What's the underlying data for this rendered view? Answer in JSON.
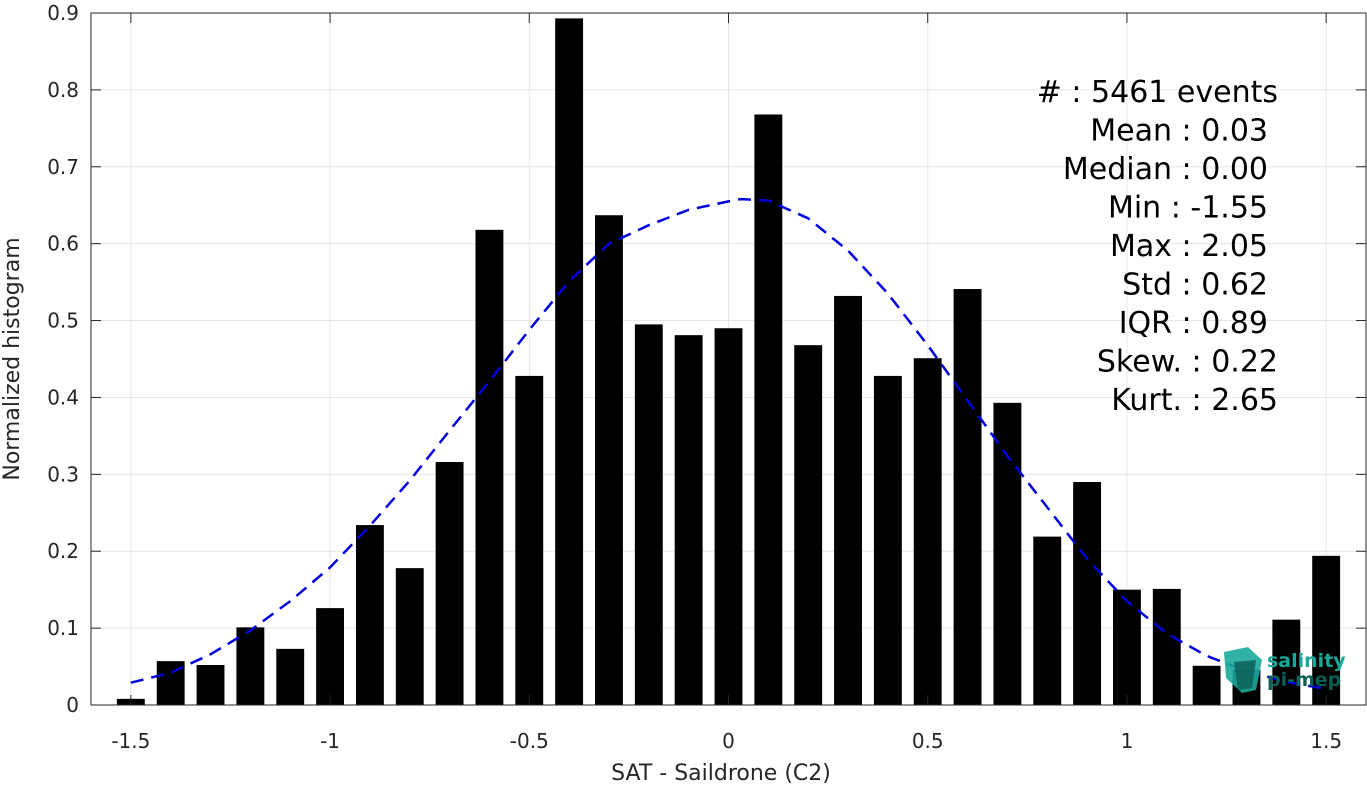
{
  "chart_data": {
    "type": "bar",
    "title": "",
    "xlabel": "SAT - Saildrone (C2)",
    "ylabel": "Normalized histogram",
    "xlim": [
      -1.6,
      1.6
    ],
    "ylim": [
      0,
      0.9
    ],
    "xticks": [
      -1.5,
      -1,
      -0.5,
      0,
      0.5,
      1,
      1.5
    ],
    "xtick_labels": [
      "-1.5",
      "-1",
      "-0.5",
      "0",
      "0.5",
      "1",
      "1.5"
    ],
    "yticks": [
      0,
      0.1,
      0.2,
      0.3,
      0.4,
      0.5,
      0.6,
      0.7,
      0.8,
      0.9
    ],
    "ytick_labels": [
      "0",
      "0.1",
      "0.2",
      "0.3",
      "0.4",
      "0.5",
      "0.6",
      "0.7",
      "0.8",
      "0.9"
    ],
    "grid": true,
    "bar_width": 0.07,
    "bar_color": "#000000",
    "bars": {
      "x": [
        -1.5,
        -1.4,
        -1.3,
        -1.2,
        -1.1,
        -1.0,
        -0.9,
        -0.8,
        -0.7,
        -0.6,
        -0.5,
        -0.4,
        -0.3,
        -0.2,
        -0.1,
        0.0,
        0.1,
        0.2,
        0.3,
        0.4,
        0.5,
        0.6,
        0.7,
        0.8,
        0.9,
        1.0,
        1.1,
        1.2,
        1.3,
        1.4,
        1.5
      ],
      "values": [
        0.008,
        0.057,
        0.052,
        0.101,
        0.073,
        0.126,
        0.234,
        0.178,
        0.316,
        0.618,
        0.428,
        0.893,
        0.637,
        0.495,
        0.481,
        0.49,
        0.768,
        0.468,
        0.532,
        0.428,
        0.451,
        0.541,
        0.393,
        0.219,
        0.29,
        0.15,
        0.151,
        0.051,
        0.046,
        0.111,
        0.194
      ]
    },
    "fit": {
      "style": "dashed",
      "color": "#0000dd",
      "x": [
        -1.5,
        -1.4,
        -1.3,
        -1.2,
        -1.1,
        -1.0,
        -0.9,
        -0.8,
        -0.7,
        -0.6,
        -0.5,
        -0.4,
        -0.3,
        -0.2,
        -0.1,
        0.0,
        0.03,
        0.1,
        0.2,
        0.3,
        0.4,
        0.5,
        0.6,
        0.7,
        0.8,
        0.9,
        1.0,
        1.1,
        1.2,
        1.3,
        1.4,
        1.5
      ],
      "values": [
        0.029,
        0.042,
        0.066,
        0.097,
        0.135,
        0.179,
        0.233,
        0.292,
        0.357,
        0.421,
        0.488,
        0.551,
        0.6,
        0.624,
        0.644,
        0.655,
        0.658,
        0.656,
        0.633,
        0.591,
        0.535,
        0.468,
        0.396,
        0.324,
        0.257,
        0.19,
        0.135,
        0.093,
        0.064,
        0.044,
        0.03,
        0.021
      ]
    },
    "stats": [
      {
        "label": "#  : 5461 events"
      },
      {
        "label": "Mean : 0.03"
      },
      {
        "label": "Median : 0.00"
      },
      {
        "label": "Min : -1.55"
      },
      {
        "label": "Max : 2.05"
      },
      {
        "label": "Std : 0.62"
      },
      {
        "label": "IQR : 0.89"
      },
      {
        "label": "Skew. : 0.22"
      },
      {
        "label": "Kurt. : 2.65"
      }
    ]
  },
  "logo": {
    "line1": "salinity",
    "line2": "pi-mep",
    "color": "#1aa89a"
  }
}
